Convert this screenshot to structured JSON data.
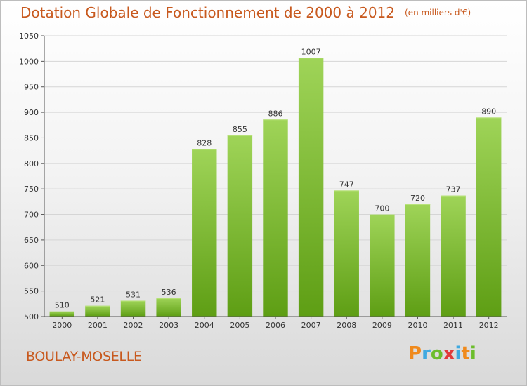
{
  "title": "Dotation Globale de Fonctionnement de 2000 à 2012",
  "unit": "(en milliers d'€)",
  "location": "BOULAY-MOSELLE",
  "brand": {
    "letters": [
      "P",
      "r",
      "o",
      "x",
      "i",
      "t",
      "i"
    ],
    "colors": [
      "#f08a1c",
      "#3fa9e0",
      "#6cbd2c",
      "#e23b3b",
      "#3fa9e0",
      "#f08a1c",
      "#6cbd2c"
    ]
  },
  "colors": {
    "bar_top": "#9fd458",
    "bar_bottom": "#5e9e14",
    "axis": "#555555",
    "grid": "#d5d5d5",
    "accent": "#c8591e"
  },
  "chart_data": {
    "type": "bar",
    "title": "Dotation Globale de Fonctionnement de 2000 à 2012",
    "categories": [
      "2000",
      "2001",
      "2002",
      "2003",
      "2004",
      "2005",
      "2006",
      "2007",
      "2008",
      "2009",
      "2010",
      "2011",
      "2012"
    ],
    "values": [
      510,
      521,
      531,
      536,
      828,
      855,
      886,
      1007,
      747,
      700,
      720,
      737,
      890
    ],
    "data_labels": [
      "510",
      "521",
      "531",
      "536",
      "828",
      "855",
      "886",
      "1007",
      "747",
      "700",
      "720",
      "737",
      "890"
    ],
    "ylim": [
      500,
      1050
    ],
    "yticks": [
      500,
      550,
      600,
      650,
      700,
      750,
      800,
      850,
      900,
      950,
      1000,
      1050
    ],
    "ytick_labels": [
      "500",
      "550",
      "600",
      "650",
      "700",
      "750",
      "800",
      "850",
      "900",
      "950",
      "1000",
      "1050"
    ],
    "xlabel": "",
    "ylabel": "",
    "grid": "horizontal",
    "legend": "none"
  }
}
